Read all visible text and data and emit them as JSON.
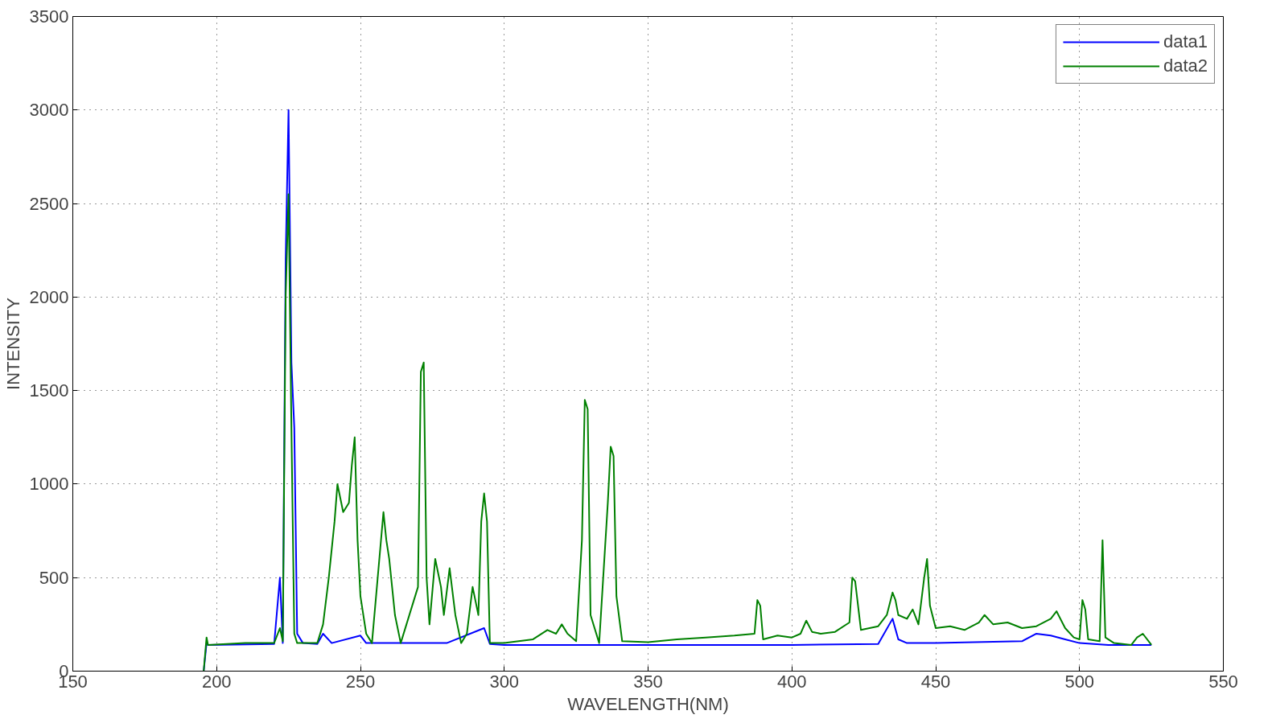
{
  "chart_data": {
    "type": "line",
    "xlabel": "WAVELENGTH(NM)",
    "ylabel": "INTENSITY",
    "xlim": [
      150,
      550
    ],
    "ylim": [
      0,
      3500
    ],
    "xticks": [
      150,
      200,
      250,
      300,
      350,
      400,
      450,
      500,
      550
    ],
    "yticks": [
      0,
      500,
      1000,
      1500,
      2000,
      2500,
      3000,
      3500
    ],
    "grid": true,
    "legend": "top right",
    "line_style": "solid",
    "marker": "none",
    "series": [
      {
        "name": "data1",
        "color": "#0000ff",
        "x": [
          195.5,
          196.5,
          197,
          220,
          222,
          223,
          224,
          225,
          226,
          227,
          228,
          230,
          235,
          237,
          240,
          250,
          252,
          270,
          280,
          293,
          295,
          300,
          350,
          400,
          430,
          435,
          437,
          440,
          450,
          480,
          485,
          490,
          495,
          500,
          510,
          525
        ],
        "values": [
          0,
          150,
          140,
          145,
          500,
          150,
          2200,
          3000,
          1650,
          1300,
          200,
          150,
          145,
          200,
          150,
          190,
          150,
          150,
          150,
          230,
          145,
          140,
          140,
          140,
          145,
          280,
          170,
          150,
          150,
          160,
          200,
          190,
          170,
          150,
          140,
          140
        ]
      },
      {
        "name": "data2",
        "color": "#008000",
        "x": [
          195.5,
          196.5,
          197,
          210,
          220,
          222,
          223,
          224,
          225,
          226,
          227,
          228,
          235,
          237,
          239,
          241,
          242,
          244,
          246,
          247,
          248,
          249,
          250,
          252,
          254,
          256,
          258,
          259,
          260,
          262,
          264,
          266,
          268,
          270,
          271,
          272,
          273,
          274,
          276,
          278,
          279,
          281,
          283,
          285,
          287,
          289,
          291,
          292,
          293,
          294,
          295,
          300,
          305,
          310,
          315,
          318,
          320,
          322,
          325,
          327,
          328,
          329,
          330,
          333,
          336,
          337,
          338,
          339,
          341,
          350,
          360,
          370,
          380,
          387,
          388,
          389,
          390,
          395,
          400,
          403,
          405,
          407,
          410,
          415,
          420,
          421,
          422,
          424,
          430,
          433,
          435,
          436,
          437,
          440,
          442,
          444,
          446,
          447,
          448,
          450,
          455,
          460,
          465,
          467,
          470,
          475,
          480,
          485,
          490,
          492,
          495,
          498,
          500,
          501,
          502,
          503,
          507,
          508,
          509,
          512,
          518,
          520,
          522,
          525
        ],
        "values": [
          0,
          180,
          140,
          150,
          150,
          230,
          160,
          2000,
          2550,
          1300,
          200,
          150,
          150,
          250,
          500,
          800,
          1000,
          850,
          900,
          1100,
          1250,
          700,
          400,
          200,
          150,
          500,
          850,
          700,
          600,
          300,
          150,
          250,
          350,
          450,
          1600,
          1650,
          500,
          250,
          600,
          450,
          300,
          550,
          300,
          150,
          200,
          450,
          300,
          800,
          950,
          800,
          150,
          150,
          160,
          170,
          220,
          200,
          250,
          200,
          160,
          700,
          1450,
          1400,
          300,
          150,
          900,
          1200,
          1150,
          400,
          160,
          155,
          170,
          180,
          190,
          200,
          380,
          350,
          170,
          190,
          180,
          200,
          270,
          210,
          200,
          210,
          260,
          500,
          480,
          220,
          240,
          300,
          420,
          380,
          300,
          280,
          330,
          250,
          500,
          600,
          350,
          230,
          240,
          220,
          260,
          300,
          250,
          260,
          230,
          240,
          280,
          320,
          230,
          180,
          170,
          380,
          330,
          170,
          160,
          700,
          180,
          150,
          140,
          180,
          200,
          140
        ]
      }
    ]
  }
}
